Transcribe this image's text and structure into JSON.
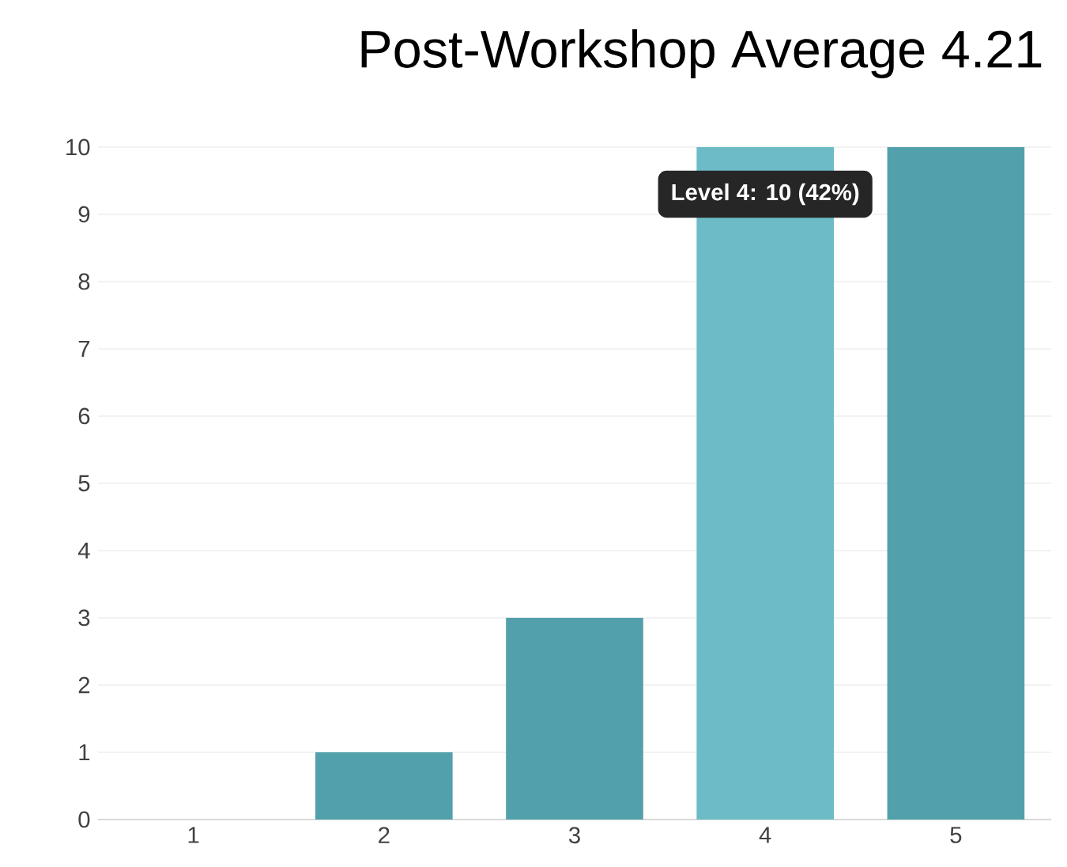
{
  "chart_data": {
    "type": "bar",
    "title": "Post-Workshop Average 4.21",
    "categories": [
      "1",
      "2",
      "3",
      "4",
      "5"
    ],
    "values": [
      0,
      1,
      3,
      10,
      10
    ],
    "colors": [
      "#52a0ab",
      "#52a0ab",
      "#52a0ab",
      "#6cbbc6",
      "#52a0ab"
    ],
    "ylim": [
      0,
      10
    ],
    "yticks": [
      0,
      1,
      2,
      3,
      4,
      5,
      6,
      7,
      8,
      9,
      10
    ],
    "grid": "y",
    "annotations": [
      {
        "text": "Level 4: 10 (42%)",
        "x": "4",
        "y": 10
      }
    ]
  }
}
